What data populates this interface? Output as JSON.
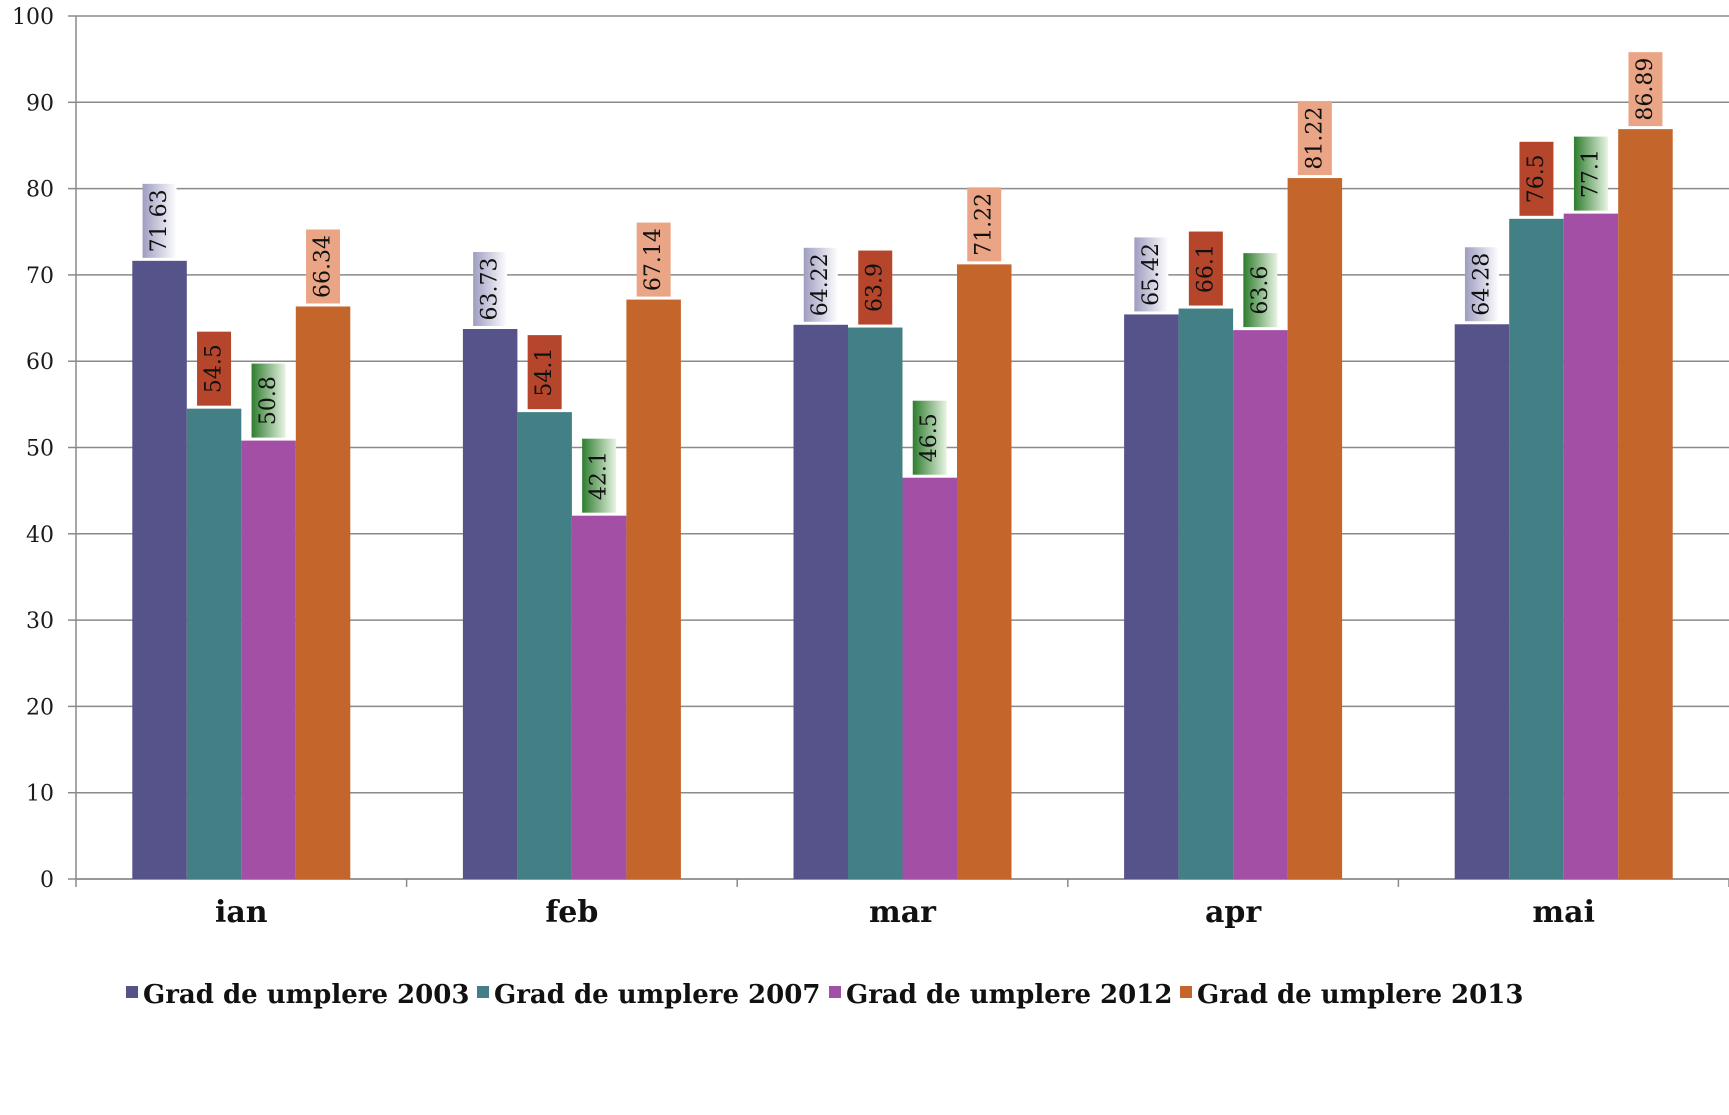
{
  "chart_data": {
    "type": "bar",
    "categories": [
      "ian",
      "feb",
      "mar",
      "apr",
      "mai"
    ],
    "series": [
      {
        "name": "Grad de umplere 2003",
        "color": "#56528A",
        "values": [
          71.63,
          63.73,
          64.22,
          65.42,
          64.28
        ],
        "value_labels": [
          "71.63",
          "63.73",
          "64.22",
          "65.42",
          "64.28"
        ]
      },
      {
        "name": "Grad de umplere 2007",
        "color": "#438086",
        "values": [
          54.5,
          54.1,
          63.9,
          66.1,
          76.5
        ],
        "value_labels": [
          "54.5",
          "54.1",
          "63.9",
          "66.1",
          "76.5"
        ]
      },
      {
        "name": "Grad de umplere 2012",
        "color": "#A24FA5",
        "values": [
          50.8,
          42.1,
          46.5,
          63.6,
          77.1
        ],
        "value_labels": [
          "50.8",
          "42.1",
          "46.5",
          "63.6",
          "77.1"
        ]
      },
      {
        "name": "Grad de umplere 2013",
        "color": "#C4652C",
        "values": [
          66.34,
          67.14,
          71.22,
          81.22,
          86.89
        ],
        "value_labels": [
          "66.34",
          "67.14",
          "71.22",
          "81.22",
          "86.89"
        ]
      }
    ],
    "label_styles": [
      {
        "fill_from": "#9E9DC1",
        "fill_to": "#FFFFFF"
      },
      {
        "fill_from": "#B5462C",
        "fill_to": "#B5462C"
      },
      {
        "fill_from": "#2E7D2E",
        "fill_to": "#E9F4E4"
      },
      {
        "fill_from": "#E9A585",
        "fill_to": "#E9A585"
      }
    ],
    "ylim": [
      0,
      100
    ],
    "yticks": [
      0,
      10,
      20,
      30,
      40,
      50,
      60,
      70,
      80,
      90,
      100
    ],
    "ytick_labels": [
      "0",
      "10",
      "20",
      "30",
      "40",
      "50",
      "60",
      "70",
      "80",
      "90",
      "100"
    ],
    "grid": true,
    "legend_position": "bottom",
    "title": "",
    "xlabel": "",
    "ylabel": ""
  }
}
